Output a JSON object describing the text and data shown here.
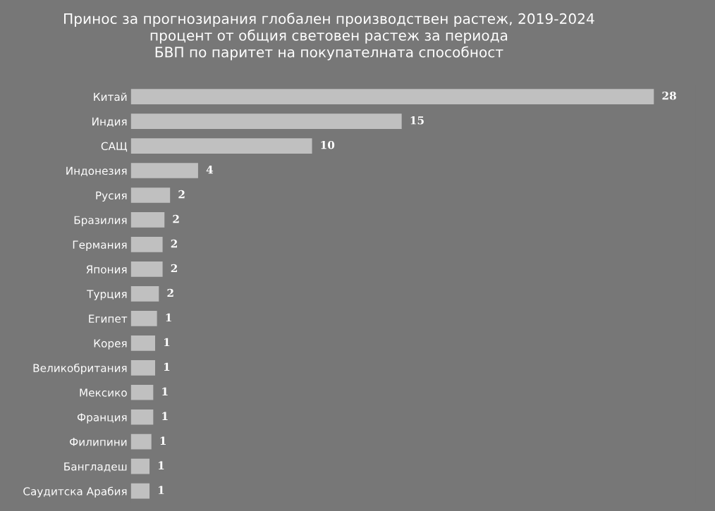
{
  "chart_data": {
    "type": "bar",
    "orientation": "horizontal",
    "title": "Принос за прогнозирания глобален производствен растеж, 2019-2024\nпроцент от общия световен растеж за периода\nБВП по паритет на покупателната способност",
    "categories": [
      "Китай",
      "Индия",
      "САЩ",
      "Индонезия",
      "Русия",
      "Бразилия",
      "Германия",
      "Япония",
      "Турция",
      "Египет",
      "Корея",
      "Великобритания",
      "Мексико",
      "Франция",
      "Филипини",
      "Бангладеш",
      "Саудитска Арабия"
    ],
    "values": [
      28,
      14.5,
      9.7,
      3.6,
      2.1,
      1.8,
      1.7,
      1.7,
      1.5,
      1.4,
      1.3,
      1.3,
      1.2,
      1.2,
      1.1,
      1.0,
      1.0
    ],
    "value_labels": [
      "28",
      "15",
      "10",
      "4",
      "2",
      "2",
      "2",
      "2",
      "2",
      "1",
      "1",
      "1",
      "1",
      "1",
      "1",
      "1",
      "1"
    ],
    "color": "#c0c0c0",
    "grid": false,
    "legend": false
  }
}
